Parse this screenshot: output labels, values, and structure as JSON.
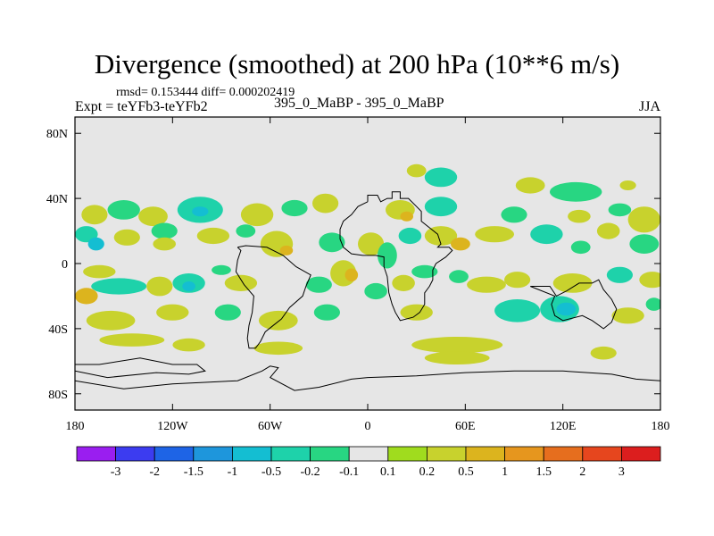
{
  "header": {
    "title": "Divergence (smoothed) at 200 hPa (10**6 m/s)",
    "stats": "rmsd= 0.153444  diff= 0.000202419",
    "expt": "Expt = teYFb3-teYFb2",
    "cases": "395_0_MaBP - 395_0_MaBP",
    "season": "JJA"
  },
  "chart_data": {
    "type": "heatmap",
    "title": "Divergence (smoothed) at 200 hPa (10**6 m/s)",
    "units": "10**6 m/s",
    "xlabel": "",
    "ylabel": "",
    "xlim": [
      -180,
      180
    ],
    "ylim": [
      -90,
      90
    ],
    "x_ticks": [
      {
        "value": -180,
        "label": "180"
      },
      {
        "value": -120,
        "label": "120W"
      },
      {
        "value": -60,
        "label": "60W"
      },
      {
        "value": 0,
        "label": "0"
      },
      {
        "value": 60,
        "label": "60E"
      },
      {
        "value": 120,
        "label": "120E"
      },
      {
        "value": 180,
        "label": "180"
      }
    ],
    "y_ticks": [
      {
        "value": 80,
        "label": "80N"
      },
      {
        "value": 40,
        "label": "40N"
      },
      {
        "value": 0,
        "label": "0"
      },
      {
        "value": -40,
        "label": "40S"
      },
      {
        "value": -80,
        "label": "80S"
      }
    ],
    "background_color": "#e6e6e6",
    "colorbar": {
      "levels": [
        "-3",
        "-2",
        "-1.5",
        "-1",
        "-0.5",
        "-0.2",
        "-0.1",
        "0.1",
        "0.2",
        "0.5",
        "1",
        "1.5",
        "2",
        "3"
      ],
      "colors": [
        "#9a1ef0",
        "#3c3cf0",
        "#1e64e6",
        "#1e96dc",
        "#14bed2",
        "#1ed2aa",
        "#28d682",
        "#e6e6e6",
        "#a0dc1e",
        "#c8d22d",
        "#dcb41e",
        "#e6961e",
        "#e66e1e",
        "#e6461e",
        "#dc1e1e"
      ]
    },
    "field_blobs": [
      {
        "lon": -168,
        "lat": 30,
        "rlon": 8,
        "rlat": 6,
        "value": 0.3
      },
      {
        "lon": -150,
        "lat": 33,
        "rlon": 10,
        "rlat": 6,
        "value": -0.15
      },
      {
        "lon": -132,
        "lat": 29,
        "rlon": 9,
        "rlat": 6,
        "value": 0.3
      },
      {
        "lon": -103,
        "lat": 33,
        "rlon": 14,
        "rlat": 8,
        "value": -0.3
      },
      {
        "lon": -103,
        "lat": 32,
        "rlon": 5,
        "rlat": 3,
        "value": -0.6
      },
      {
        "lon": -68,
        "lat": 30,
        "rlon": 10,
        "rlat": 7,
        "value": 0.3
      },
      {
        "lon": -45,
        "lat": 34,
        "rlon": 8,
        "rlat": 5,
        "value": -0.15
      },
      {
        "lon": -26,
        "lat": 37,
        "rlon": 8,
        "rlat": 6,
        "value": 0.3
      },
      {
        "lon": 20,
        "lat": 33,
        "rlon": 9,
        "rlat": 6,
        "value": 0.3
      },
      {
        "lon": 24,
        "lat": 29,
        "rlon": 4,
        "rlat": 3,
        "value": 0.7
      },
      {
        "lon": 45,
        "lat": 35,
        "rlon": 10,
        "rlat": 6,
        "value": -0.3
      },
      {
        "lon": 90,
        "lat": 30,
        "rlon": 8,
        "rlat": 5,
        "value": -0.15
      },
      {
        "lon": 130,
        "lat": 29,
        "rlon": 7,
        "rlat": 4,
        "value": 0.3
      },
      {
        "lon": 155,
        "lat": 33,
        "rlon": 7,
        "rlat": 4,
        "value": -0.15
      },
      {
        "lon": 45,
        "lat": 53,
        "rlon": 10,
        "rlat": 6,
        "value": -0.3
      },
      {
        "lon": 30,
        "lat": 57,
        "rlon": 6,
        "rlat": 4,
        "value": 0.3
      },
      {
        "lon": 128,
        "lat": 44,
        "rlon": 16,
        "rlat": 6,
        "value": -0.15
      },
      {
        "lon": 100,
        "lat": 48,
        "rlon": 9,
        "rlat": 5,
        "value": 0.3
      },
      {
        "lon": 160,
        "lat": 48,
        "rlon": 5,
        "rlat": 3,
        "value": 0.3
      },
      {
        "lon": 170,
        "lat": 27,
        "rlon": 10,
        "rlat": 8,
        "value": 0.2
      },
      {
        "lon": -173,
        "lat": 18,
        "rlon": 7,
        "rlat": 5,
        "value": -0.4
      },
      {
        "lon": -167,
        "lat": 12,
        "rlon": 5,
        "rlat": 4,
        "value": -0.6
      },
      {
        "lon": -148,
        "lat": 16,
        "rlon": 8,
        "rlat": 5,
        "value": 0.3
      },
      {
        "lon": -125,
        "lat": 20,
        "rlon": 8,
        "rlat": 5,
        "value": -0.2
      },
      {
        "lon": -125,
        "lat": 12,
        "rlon": 7,
        "rlat": 4,
        "value": 0.3
      },
      {
        "lon": -95,
        "lat": 17,
        "rlon": 10,
        "rlat": 5,
        "value": 0.3
      },
      {
        "lon": -75,
        "lat": 20,
        "rlon": 6,
        "rlat": 4,
        "value": -0.2
      },
      {
        "lon": -56,
        "lat": 12,
        "rlon": 10,
        "rlat": 8,
        "value": 0.3
      },
      {
        "lon": -50,
        "lat": 8,
        "rlon": 4,
        "rlat": 3,
        "value": 0.6
      },
      {
        "lon": -22,
        "lat": 13,
        "rlon": 8,
        "rlat": 6,
        "value": -0.2
      },
      {
        "lon": 2,
        "lat": 12,
        "rlon": 8,
        "rlat": 7,
        "value": 0.3
      },
      {
        "lon": 12,
        "lat": 5,
        "rlon": 6,
        "rlat": 8,
        "value": -0.2
      },
      {
        "lon": 26,
        "lat": 17,
        "rlon": 7,
        "rlat": 5,
        "value": -0.3
      },
      {
        "lon": 45,
        "lat": 17,
        "rlon": 10,
        "rlat": 6,
        "value": 0.3
      },
      {
        "lon": 57,
        "lat": 12,
        "rlon": 6,
        "rlat": 4,
        "value": 0.6
      },
      {
        "lon": 78,
        "lat": 18,
        "rlon": 12,
        "rlat": 5,
        "value": 0.3
      },
      {
        "lon": 110,
        "lat": 18,
        "rlon": 10,
        "rlat": 6,
        "value": -0.3
      },
      {
        "lon": 131,
        "lat": 10,
        "rlon": 6,
        "rlat": 4,
        "value": -0.2
      },
      {
        "lon": 148,
        "lat": 20,
        "rlon": 7,
        "rlat": 5,
        "value": 0.3
      },
      {
        "lon": 170,
        "lat": 12,
        "rlon": 9,
        "rlat": 6,
        "value": -0.2
      },
      {
        "lon": -165,
        "lat": -5,
        "rlon": 10,
        "rlat": 4,
        "value": 0.3
      },
      {
        "lon": -153,
        "lat": -14,
        "rlon": 17,
        "rlat": 5,
        "value": -0.3
      },
      {
        "lon": -173,
        "lat": -20,
        "rlon": 7,
        "rlat": 5,
        "value": 0.5
      },
      {
        "lon": -176,
        "lat": -20,
        "rlon": 3,
        "rlat": 2,
        "value": 0.7
      },
      {
        "lon": -128,
        "lat": -14,
        "rlon": 8,
        "rlat": 6,
        "value": 0.3
      },
      {
        "lon": -110,
        "lat": -12,
        "rlon": 10,
        "rlat": 6,
        "value": -0.3
      },
      {
        "lon": -110,
        "lat": -14,
        "rlon": 4,
        "rlat": 3,
        "value": -0.6
      },
      {
        "lon": -78,
        "lat": -12,
        "rlon": 10,
        "rlat": 5,
        "value": 0.3
      },
      {
        "lon": -90,
        "lat": -4,
        "rlon": 6,
        "rlat": 3,
        "value": -0.2
      },
      {
        "lon": -30,
        "lat": -13,
        "rlon": 8,
        "rlat": 5,
        "value": -0.2
      },
      {
        "lon": -15,
        "lat": -6,
        "rlon": 8,
        "rlat": 8,
        "value": 0.3
      },
      {
        "lon": -10,
        "lat": -7,
        "rlon": 4,
        "rlat": 4,
        "value": 0.6
      },
      {
        "lon": 5,
        "lat": -17,
        "rlon": 7,
        "rlat": 5,
        "value": -0.2
      },
      {
        "lon": 22,
        "lat": -12,
        "rlon": 7,
        "rlat": 5,
        "value": 0.3
      },
      {
        "lon": 35,
        "lat": -5,
        "rlon": 8,
        "rlat": 4,
        "value": -0.2
      },
      {
        "lon": 56,
        "lat": -8,
        "rlon": 6,
        "rlat": 4,
        "value": -0.2
      },
      {
        "lon": 73,
        "lat": -13,
        "rlon": 12,
        "rlat": 5,
        "value": 0.3
      },
      {
        "lon": 92,
        "lat": -10,
        "rlon": 8,
        "rlat": 5,
        "value": 0.3
      },
      {
        "lon": 126,
        "lat": -12,
        "rlon": 12,
        "rlat": 6,
        "value": 0.3
      },
      {
        "lon": 155,
        "lat": -7,
        "rlon": 8,
        "rlat": 5,
        "value": -0.3
      },
      {
        "lon": 175,
        "lat": -10,
        "rlon": 8,
        "rlat": 5,
        "value": 0.3
      },
      {
        "lon": -158,
        "lat": -35,
        "rlon": 15,
        "rlat": 6,
        "value": 0.3
      },
      {
        "lon": -120,
        "lat": -30,
        "rlon": 10,
        "rlat": 5,
        "value": 0.3
      },
      {
        "lon": -86,
        "lat": -30,
        "rlon": 8,
        "rlat": 5,
        "value": -0.2
      },
      {
        "lon": -55,
        "lat": -35,
        "rlon": 12,
        "rlat": 6,
        "value": 0.3
      },
      {
        "lon": -25,
        "lat": -30,
        "rlon": 8,
        "rlat": 5,
        "value": -0.2
      },
      {
        "lon": 30,
        "lat": -30,
        "rlon": 10,
        "rlat": 5,
        "value": 0.3
      },
      {
        "lon": 92,
        "lat": -29,
        "rlon": 14,
        "rlat": 7,
        "value": -0.3
      },
      {
        "lon": 118,
        "lat": -28,
        "rlon": 12,
        "rlat": 8,
        "value": -0.3
      },
      {
        "lon": 122,
        "lat": -28,
        "rlon": 6,
        "rlat": 4,
        "value": -0.6
      },
      {
        "lon": 160,
        "lat": -32,
        "rlon": 10,
        "rlat": 5,
        "value": 0.3
      },
      {
        "lon": 176,
        "lat": -25,
        "rlon": 5,
        "rlat": 4,
        "value": -0.2
      },
      {
        "lon": -145,
        "lat": -47,
        "rlon": 20,
        "rlat": 4,
        "value": 0.3
      },
      {
        "lon": -110,
        "lat": -50,
        "rlon": 10,
        "rlat": 4,
        "value": 0.3
      },
      {
        "lon": -55,
        "lat": -52,
        "rlon": 15,
        "rlat": 4,
        "value": 0.3
      },
      {
        "lon": 55,
        "lat": -50,
        "rlon": 28,
        "rlat": 5,
        "value": 0.3
      },
      {
        "lon": 55,
        "lat": -58,
        "rlon": 20,
        "rlat": 4,
        "value": 0.3
      },
      {
        "lon": 145,
        "lat": -55,
        "rlon": 8,
        "rlat": 4,
        "value": 0.3
      }
    ],
    "coastlines": [
      [
        [
          0,
          38
        ],
        [
          0,
          42
        ],
        [
          6,
          42
        ],
        [
          8,
          38
        ],
        [
          12,
          40
        ],
        [
          15,
          40
        ],
        [
          15,
          44
        ],
        [
          20,
          44
        ],
        [
          20,
          40
        ],
        [
          25,
          40
        ],
        [
          30,
          35
        ],
        [
          33,
          32
        ],
        [
          33,
          26
        ],
        [
          38,
          22
        ],
        [
          43,
          18
        ],
        [
          45,
          12
        ],
        [
          43,
          10
        ],
        [
          50,
          10
        ],
        [
          52,
          8
        ],
        [
          48,
          4
        ],
        [
          42,
          0
        ],
        [
          40,
          -4
        ],
        [
          40,
          -10
        ],
        [
          38,
          -14
        ],
        [
          35,
          -18
        ],
        [
          35,
          -25
        ],
        [
          32,
          -30
        ],
        [
          28,
          -33
        ],
        [
          20,
          -35
        ],
        [
          17,
          -30
        ],
        [
          15,
          -25
        ],
        [
          13,
          -18
        ],
        [
          12,
          -8
        ],
        [
          10,
          -2
        ],
        [
          10,
          4
        ],
        [
          5,
          5
        ],
        [
          -3,
          5
        ],
        [
          -10,
          6
        ],
        [
          -15,
          10
        ],
        [
          -17,
          15
        ],
        [
          -17,
          21
        ],
        [
          -15,
          26
        ],
        [
          -10,
          30
        ],
        [
          -6,
          35
        ],
        [
          0,
          38
        ]
      ],
      [
        [
          100,
          -14
        ],
        [
          112,
          -14
        ],
        [
          116,
          -20
        ],
        [
          122,
          -17
        ],
        [
          130,
          -12
        ],
        [
          138,
          -12
        ],
        [
          142,
          -10
        ],
        [
          145,
          -16
        ],
        [
          150,
          -22
        ],
        [
          153,
          -28
        ],
        [
          150,
          -36
        ],
        [
          145,
          -40
        ],
        [
          138,
          -35
        ],
        [
          132,
          -32
        ],
        [
          120,
          -35
        ],
        [
          115,
          -32
        ],
        [
          113,
          -25
        ],
        [
          115,
          -20
        ],
        [
          100,
          -14
        ]
      ],
      [
        [
          -80,
          10
        ],
        [
          -75,
          11
        ],
        [
          -62,
          10
        ],
        [
          -52,
          5
        ],
        [
          -44,
          -2
        ],
        [
          -35,
          -7
        ],
        [
          -38,
          -14
        ],
        [
          -40,
          -20
        ],
        [
          -48,
          -27
        ],
        [
          -53,
          -34
        ],
        [
          -58,
          -38
        ],
        [
          -63,
          -42
        ],
        [
          -66,
          -48
        ],
        [
          -69,
          -52
        ],
        [
          -73,
          -52
        ],
        [
          -74,
          -46
        ],
        [
          -73,
          -38
        ],
        [
          -71,
          -30
        ],
        [
          -70,
          -20
        ],
        [
          -76,
          -13
        ],
        [
          -81,
          -5
        ],
        [
          -80,
          2
        ],
        [
          -78,
          8
        ],
        [
          -80,
          10
        ]
      ],
      [
        [
          -180,
          -72
        ],
        [
          -150,
          -77
        ],
        [
          -120,
          -74
        ],
        [
          -100,
          -73
        ],
        [
          -80,
          -72
        ],
        [
          -65,
          -66
        ],
        [
          -60,
          -63
        ],
        [
          -55,
          -64
        ],
        [
          -60,
          -70
        ],
        [
          -45,
          -78
        ],
        [
          -30,
          -76
        ],
        [
          -10,
          -71
        ],
        [
          0,
          -70
        ],
        [
          30,
          -69
        ],
        [
          60,
          -67
        ],
        [
          90,
          -66
        ],
        [
          120,
          -66
        ],
        [
          150,
          -68
        ],
        [
          165,
          -71
        ],
        [
          180,
          -72
        ]
      ],
      [
        [
          -180,
          -62
        ],
        [
          -165,
          -62
        ],
        [
          -140,
          -58
        ],
        [
          -120,
          -62
        ],
        [
          -105,
          -62
        ],
        [
          -100,
          -66
        ],
        [
          -110,
          -68
        ],
        [
          -130,
          -67
        ],
        [
          -160,
          -70
        ],
        [
          -180,
          -66
        ]
      ]
    ]
  }
}
